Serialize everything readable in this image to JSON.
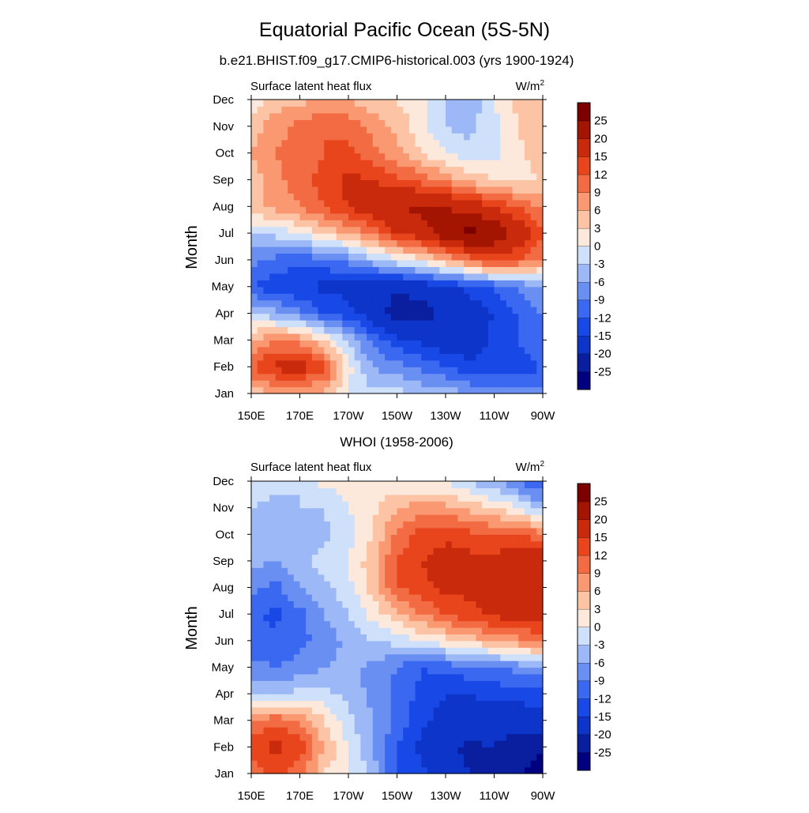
{
  "title": "Equatorial Pacific Ocean (5S-5N)",
  "chart_data": [
    {
      "type": "heatmap",
      "panel": "model",
      "title": "b.e21.BHIST.f09_g17.CMIP6-historical.003 (yrs 1900-1924)",
      "left_label": "Surface latent heat flux",
      "right_label": "W/m",
      "right_label_sup": "2",
      "ylabel": "Month",
      "x_ticks": [
        "150E",
        "170E",
        "170W",
        "150W",
        "130W",
        "110W",
        "90W"
      ],
      "y_ticks": [
        "Jan",
        "Feb",
        "Mar",
        "Apr",
        "May",
        "Jun",
        "Jul",
        "Aug",
        "Sep",
        "Oct",
        "Nov",
        "Dec"
      ],
      "x_range_lon_east": [
        150,
        270
      ],
      "grid_lon_east": [
        150,
        160,
        170,
        180,
        190,
        200,
        210,
        220,
        230,
        240,
        250,
        260,
        270
      ],
      "values": [
        [
          4,
          6,
          5,
          5,
          0,
          -2,
          -2,
          -4,
          -4,
          -6,
          -6,
          -8,
          -8
        ],
        [
          12,
          16,
          17,
          14,
          1,
          -6,
          -8,
          -10,
          -12,
          -14,
          -15,
          -14,
          -12
        ],
        [
          6,
          9,
          8,
          3,
          -4,
          -10,
          -14,
          -16,
          -18,
          -17,
          -14,
          -12,
          -9
        ],
        [
          -3,
          -5,
          -8,
          -12,
          -14,
          -17,
          -23,
          -22,
          -19,
          -17,
          -15,
          -12,
          -9
        ],
        [
          -12,
          -14,
          -15,
          -16,
          -16,
          -18,
          -19,
          -18,
          -16,
          -14,
          -12,
          -9,
          -6
        ],
        [
          -8,
          -10,
          -11,
          -10,
          -8,
          -4,
          -1,
          2,
          6,
          10,
          14,
          12,
          8
        ],
        [
          -3,
          -2,
          0,
          3,
          6,
          10,
          15,
          18,
          23,
          27,
          24,
          18,
          12
        ],
        [
          5,
          7,
          9,
          12,
          15,
          18,
          20,
          21,
          20,
          18,
          15,
          12,
          8
        ],
        [
          4,
          8,
          11,
          13,
          16,
          15,
          13,
          11,
          8,
          5,
          3,
          2,
          3
        ],
        [
          6,
          9,
          10,
          12,
          13,
          10,
          7,
          3,
          0,
          -2,
          -1,
          2,
          5
        ],
        [
          4,
          8,
          10,
          12,
          11,
          8,
          5,
          1,
          -3,
          -4,
          -1,
          3,
          6
        ],
        [
          1,
          4,
          5,
          6,
          6,
          4,
          3,
          1,
          -3,
          -5,
          0,
          4,
          5
        ]
      ],
      "levels": [
        -25,
        -20,
        -15,
        -12,
        -9,
        -6,
        -3,
        0,
        3,
        6,
        9,
        12,
        15,
        20,
        25
      ]
    },
    {
      "type": "heatmap",
      "panel": "obs",
      "title": "WHOI (1958-2006)",
      "left_label": "Surface latent heat flux",
      "right_label": "W/m",
      "right_label_sup": "2",
      "ylabel": "Month",
      "x_ticks": [
        "150E",
        "170E",
        "170W",
        "150W",
        "130W",
        "110W",
        "90W"
      ],
      "y_ticks": [
        "Jan",
        "Feb",
        "Mar",
        "Apr",
        "May",
        "Jun",
        "Jul",
        "Aug",
        "Sep",
        "Oct",
        "Nov",
        "Dec"
      ],
      "x_range_lon_east": [
        150,
        270
      ],
      "grid_lon_east": [
        150,
        160,
        170,
        180,
        190,
        200,
        210,
        220,
        230,
        240,
        250,
        260,
        270
      ],
      "values": [
        [
          10,
          14,
          10,
          3,
          0,
          -4,
          -12,
          -14,
          -18,
          -20,
          -22,
          -25,
          -26
        ],
        [
          14,
          16,
          14,
          6,
          0,
          -6,
          -12,
          -16,
          -19,
          -21,
          -20,
          -24,
          -25
        ],
        [
          9,
          11,
          9,
          3,
          -2,
          -6,
          -10,
          -14,
          -17,
          -18,
          -17,
          -17,
          -17
        ],
        [
          -3,
          -3,
          -2,
          -2,
          -4,
          -7,
          -10,
          -13,
          -15,
          -15,
          -14,
          -14,
          -13
        ],
        [
          -8,
          -9,
          -8,
          -6,
          -5,
          -7,
          -9,
          -12,
          -11,
          -10,
          -9,
          -8,
          -7
        ],
        [
          -12,
          -11,
          -10,
          -8,
          -5,
          -3,
          -2,
          0,
          2,
          4,
          6,
          8,
          10
        ],
        [
          -11,
          -13,
          -10,
          -6,
          -3,
          1,
          5,
          9,
          12,
          14,
          16,
          17,
          17
        ],
        [
          -8,
          -10,
          -6,
          -4,
          -1,
          4,
          12,
          14,
          16,
          16,
          17,
          18,
          18
        ],
        [
          -5,
          -6,
          -4,
          -2,
          0,
          5,
          12,
          15,
          17,
          16,
          16,
          19,
          18
        ],
        [
          -5,
          -4,
          -3,
          -4,
          -1,
          3,
          10,
          13,
          14,
          13,
          12,
          12,
          10
        ],
        [
          -3,
          -4,
          -3,
          -3,
          0,
          2,
          6,
          8,
          7,
          5,
          3,
          0,
          -5
        ],
        [
          0,
          -2,
          -3,
          1,
          1,
          2,
          1,
          0,
          0,
          -3,
          -6,
          -9,
          -12
        ]
      ],
      "levels": [
        -25,
        -20,
        -15,
        -12,
        -9,
        -6,
        -3,
        0,
        3,
        6,
        9,
        12,
        15,
        20,
        25
      ]
    }
  ],
  "colorbar": {
    "labels": [
      "-25",
      "-20",
      "-15",
      "-12",
      "-9",
      "-6",
      "-3",
      "0",
      "3",
      "6",
      "9",
      "12",
      "15",
      "20",
      "25"
    ],
    "colors": [
      "#000080",
      "#0a1ea0",
      "#0d35c9",
      "#1849e6",
      "#3a68f0",
      "#6a8ff3",
      "#9db8f6",
      "#cfe0fa",
      "#fde8dc",
      "#fcc3a5",
      "#f99871",
      "#f26b42",
      "#e8451d",
      "#c92a0b",
      "#a31500",
      "#7d0000"
    ]
  }
}
